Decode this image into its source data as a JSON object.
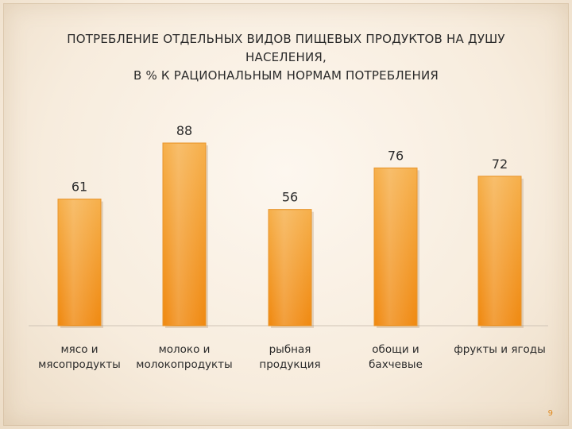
{
  "slide": {
    "title_lines": [
      "ПОТРЕБЛЕНИЕ ОТДЕЛЬНЫХ ВИДОВ ПИЩЕВЫХ ПРОДУКТОВ НА ДУШУ",
      "НАСЕЛЕНИЯ,",
      "В % К РАЦИОНАЛЬНЫМ НОРМАМ ПОТРЕБЛЕНИЯ"
    ],
    "page_number": "9"
  },
  "colors": {
    "bar_top": "#f6b04c",
    "bar_bottom": "#f08a12",
    "text": "#2b2b2b",
    "accent": "#e08a20"
  },
  "chart_data": {
    "type": "bar",
    "categories": [
      [
        "мясо и",
        "мясопродукты"
      ],
      [
        "молоко и",
        "молокопродукты"
      ],
      [
        "рыбная",
        "продукция"
      ],
      [
        "обощи и",
        "бахчевые"
      ],
      [
        "фрукты и ягоды"
      ]
    ],
    "values": [
      61,
      88,
      56,
      76,
      72
    ],
    "data_labels": [
      "61",
      "88",
      "56",
      "76",
      "72"
    ],
    "ylim": [
      0,
      100
    ],
    "grid": false,
    "legend": "none"
  }
}
